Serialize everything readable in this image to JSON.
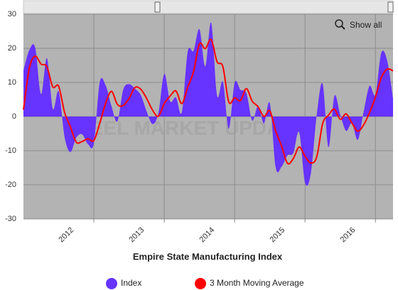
{
  "chart_data": {
    "type": "area-line",
    "title": "Empire State Manufacturing Index",
    "watermark": "STEEL MARKET UPDATE",
    "button": "Show all",
    "x": [
      0,
      1,
      2,
      3,
      4,
      5,
      6,
      7,
      8,
      9,
      10,
      11,
      12,
      13,
      14,
      15,
      16,
      17,
      18,
      19,
      20,
      21,
      22,
      23,
      24,
      25,
      26,
      27,
      28,
      29,
      30,
      31,
      32,
      33,
      34,
      35,
      36,
      37,
      38,
      39,
      40,
      41,
      42,
      43,
      44,
      45,
      46,
      47,
      48,
      49,
      50,
      51,
      52,
      53,
      54,
      55,
      56,
      57,
      58,
      59,
      60,
      61,
      62,
      63
    ],
    "xlim": [
      0,
      63
    ],
    "xticks": [
      {
        "value": 12,
        "label": "2012"
      },
      {
        "value": 24,
        "label": "2013"
      },
      {
        "value": 36,
        "label": "2014"
      },
      {
        "value": 48,
        "label": "2015"
      },
      {
        "value": 60,
        "label": "2016"
      }
    ],
    "ylim": [
      -30,
      30
    ],
    "yticks": [
      -30,
      -20,
      -10,
      0,
      10,
      20,
      30
    ],
    "grid": true,
    "legend": "bottom",
    "series": [
      {
        "name": "Index",
        "kind": "area",
        "color": "#6633ff",
        "values": [
          13.5,
          19.5,
          20.2,
          6.6,
          17.1,
          2.3,
          7.4,
          -5.9,
          -10.4,
          -6.2,
          -5.2,
          -8.1,
          -7.8,
          10.0,
          9.2,
          3.1,
          -1.4,
          7.8,
          9.5,
          8.2,
          6.3,
          1.5,
          -2.2,
          1.0,
          12.5,
          4.5,
          5.6,
          1.3,
          19.0,
          19.3,
          25.6,
          14.7,
          27.5,
          6.2,
          10.2,
          -3.6,
          9.9,
          7.8,
          6.9,
          -1.2,
          3.1,
          -2.0,
          3.9,
          -14.9,
          -14.7,
          -11.4,
          -10.7,
          -4.6,
          -19.4,
          -16.6,
          0.6,
          9.6,
          -9.0,
          6.0,
          0.6,
          -4.2,
          -2.0,
          -6.8,
          1.5,
          9.0,
          6.5,
          18.7,
          16.4,
          5.2
        ]
      },
      {
        "name": "3 Month Moving Average",
        "kind": "line",
        "color": "#ff0000",
        "values": [
          2.0,
          14.2,
          17.7,
          15.4,
          14.6,
          8.7,
          8.9,
          1.3,
          -3.0,
          -7.5,
          -7.3,
          -6.5,
          -7.0,
          -2.0,
          3.8,
          7.4,
          3.6,
          3.2,
          5.3,
          8.5,
          8.0,
          5.3,
          1.9,
          0.1,
          3.8,
          6.0,
          7.5,
          3.8,
          8.6,
          13.2,
          21.3,
          19.9,
          22.6,
          16.1,
          14.6,
          4.3,
          5.5,
          4.7,
          8.2,
          4.5,
          2.9,
          0.0,
          1.7,
          -4.3,
          -8.6,
          -13.7,
          -12.3,
          -8.9,
          -11.6,
          -13.6,
          -11.8,
          -2.1,
          0.4,
          2.2,
          -0.8,
          0.8,
          -1.9,
          -4.3,
          -2.4,
          1.2,
          5.7,
          11.4,
          13.9,
          13.4
        ]
      }
    ]
  }
}
